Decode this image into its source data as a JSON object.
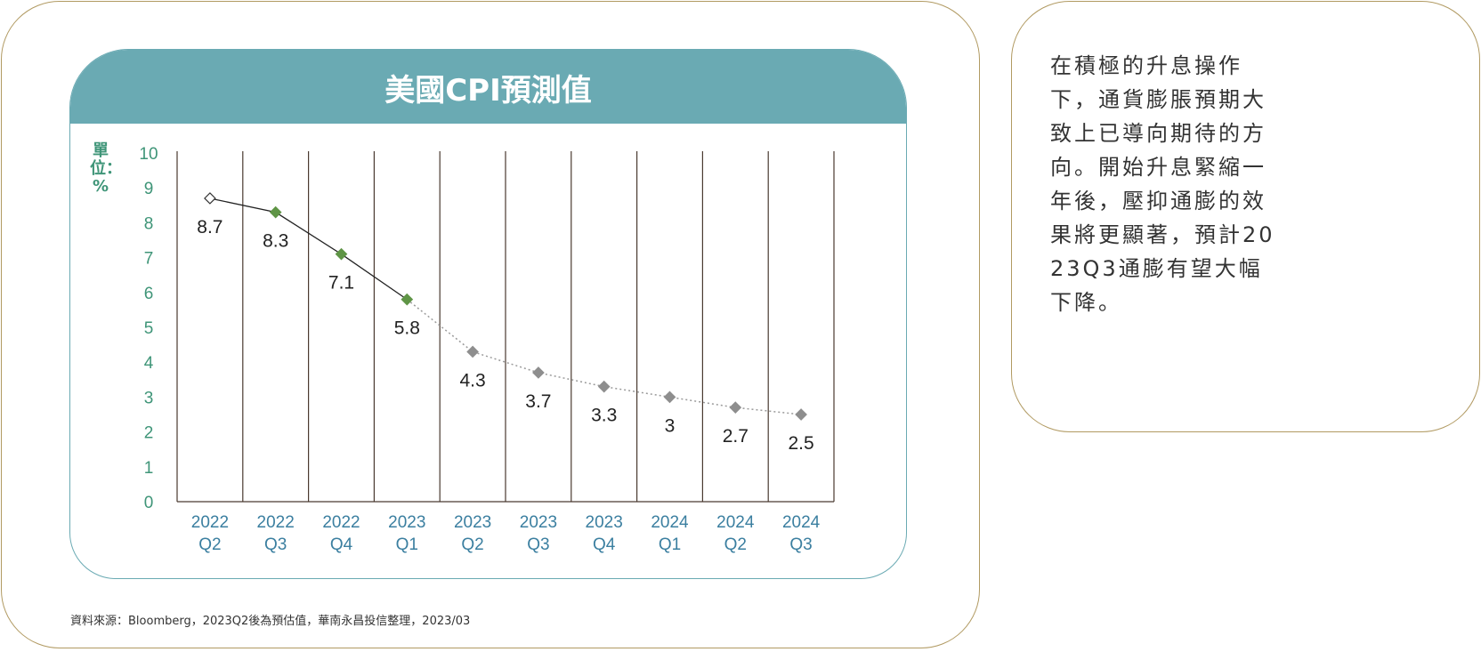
{
  "chart_data": {
    "type": "line",
    "title": "美國CPI預測值",
    "ylabel": "單位：%",
    "ylim": [
      0,
      10
    ],
    "yticks": [
      "0",
      "1",
      "2",
      "3",
      "4",
      "5",
      "6",
      "7",
      "8",
      "9",
      "10"
    ],
    "categories": [
      [
        "2022",
        "Q2"
      ],
      [
        "2022",
        "Q3"
      ],
      [
        "2022",
        "Q4"
      ],
      [
        "2023",
        "Q1"
      ],
      [
        "2023",
        "Q2"
      ],
      [
        "2023",
        "Q3"
      ],
      [
        "2023",
        "Q4"
      ],
      [
        "2024",
        "Q1"
      ],
      [
        "2024",
        "Q2"
      ],
      [
        "2024",
        "Q3"
      ]
    ],
    "values": [
      8.7,
      8.3,
      7.1,
      5.8,
      4.3,
      3.7,
      3.3,
      3,
      2.7,
      2.5
    ],
    "value_labels": [
      "8.7",
      "8.3",
      "7.1",
      "5.8",
      "4.3",
      "3.7",
      "3.3",
      "3",
      "2.7",
      "2.5"
    ],
    "actual_count": 4,
    "grid": "vertical",
    "colors": {
      "header": "#6aaab3",
      "actual_marker": "#5f9546",
      "forecast_marker": "#8e8e8e",
      "axis_tick_text": "#3f9578",
      "x_label_text": "#3b7fa0",
      "grid": "#4a3a30"
    }
  },
  "source": "資料來源：Bloomberg，2023Q2後為預估值，華南永昌投信整理，2023/03",
  "commentary": "在積極的升息操作下，通貨膨脹預期大致上已導向期待的方向。開始升息緊縮一年後，壓抑通膨的效果將更顯著，預計2023Q3通膨有望大幅下降。"
}
